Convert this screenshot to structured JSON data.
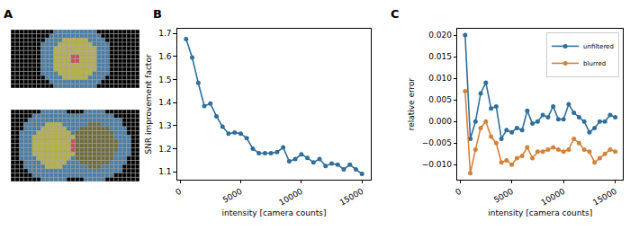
{
  "panel_labels": [
    "A",
    "B",
    "C"
  ],
  "chart_data": [
    {
      "type": "line",
      "x_label": "intensity [camera counts]",
      "y_label": "SNR improvement factor",
      "x": [
        500,
        1000,
        1500,
        2000,
        2500,
        3000,
        3500,
        4000,
        4500,
        5000,
        5500,
        6000,
        6500,
        7000,
        7500,
        8000,
        8500,
        9000,
        9500,
        10000,
        10500,
        11000,
        11500,
        12000,
        12500,
        13000,
        13500,
        14000,
        14500,
        15000
      ],
      "series": [
        {
          "color": "#2f6f9a",
          "marker": "circle",
          "values": [
            1.675,
            1.595,
            1.485,
            1.385,
            1.395,
            1.34,
            1.295,
            1.265,
            1.27,
            1.265,
            1.245,
            1.2,
            1.18,
            1.18,
            1.18,
            1.185,
            1.205,
            1.145,
            1.155,
            1.175,
            1.16,
            1.14,
            1.155,
            1.125,
            1.135,
            1.13,
            1.11,
            1.13,
            1.11,
            1.09
          ]
        }
      ],
      "xlim": [
        -250,
        15750
      ],
      "xticks": [
        0,
        5000,
        10000,
        15000
      ],
      "ylim": [
        1.065,
        1.72
      ],
      "yticks": [
        1.1,
        1.2,
        1.3,
        1.4,
        1.5,
        1.6,
        1.7
      ],
      "grid": false
    },
    {
      "type": "line",
      "x_label": "intensity [camera counts]",
      "y_label": "relative error",
      "x": [
        500,
        1000,
        1500,
        2000,
        2500,
        3000,
        3500,
        4000,
        4500,
        5000,
        5500,
        6000,
        6500,
        7000,
        7500,
        8000,
        8500,
        9000,
        9500,
        10000,
        10500,
        11000,
        11500,
        12000,
        12500,
        13000,
        13500,
        14000,
        14500,
        15000
      ],
      "series": [
        {
          "name": "unfiltered",
          "color": "#2f6f9a",
          "marker": "circle",
          "values": [
            0.02,
            -0.004,
            0.0,
            0.0065,
            0.009,
            0.003,
            0.0035,
            -0.004,
            -0.002,
            -0.0025,
            -0.0015,
            -0.002,
            0.0025,
            -0.0005,
            0.0,
            0.0015,
            0.001,
            0.0035,
            0.0005,
            0.0005,
            0.004,
            0.002,
            0.001,
            0.0,
            -0.0025,
            -0.0015,
            0.0,
            0.0,
            0.0015,
            0.001
          ]
        },
        {
          "name": "blurred",
          "color": "#d4823a",
          "marker": "circle",
          "values": [
            0.007,
            -0.012,
            -0.0065,
            -0.0015,
            0.0,
            -0.0035,
            -0.005,
            -0.0095,
            -0.009,
            -0.01,
            -0.0085,
            -0.008,
            -0.006,
            -0.0085,
            -0.007,
            -0.007,
            -0.0065,
            -0.006,
            -0.0065,
            -0.007,
            -0.0065,
            -0.004,
            -0.005,
            -0.0065,
            -0.007,
            -0.0095,
            -0.0085,
            -0.0075,
            -0.0065,
            -0.007
          ]
        }
      ],
      "xlim": [
        -250,
        15750
      ],
      "xticks": [
        0,
        5000,
        10000,
        15000
      ],
      "ylim": [
        -0.0135,
        0.0215
      ],
      "yticks": [
        {
          "value": -0.01,
          "label": "−0.010"
        },
        {
          "value": -0.005,
          "label": "−0.005"
        },
        {
          "value": 0,
          "label": "0.000"
        },
        {
          "value": 0.005,
          "label": "0.005"
        },
        {
          "value": 0.01,
          "label": "0.010"
        },
        {
          "value": 0.015,
          "label": "0.015"
        },
        {
          "value": 0.02,
          "label": "0.020"
        }
      ],
      "legend": "upper right",
      "grid": false
    }
  ]
}
